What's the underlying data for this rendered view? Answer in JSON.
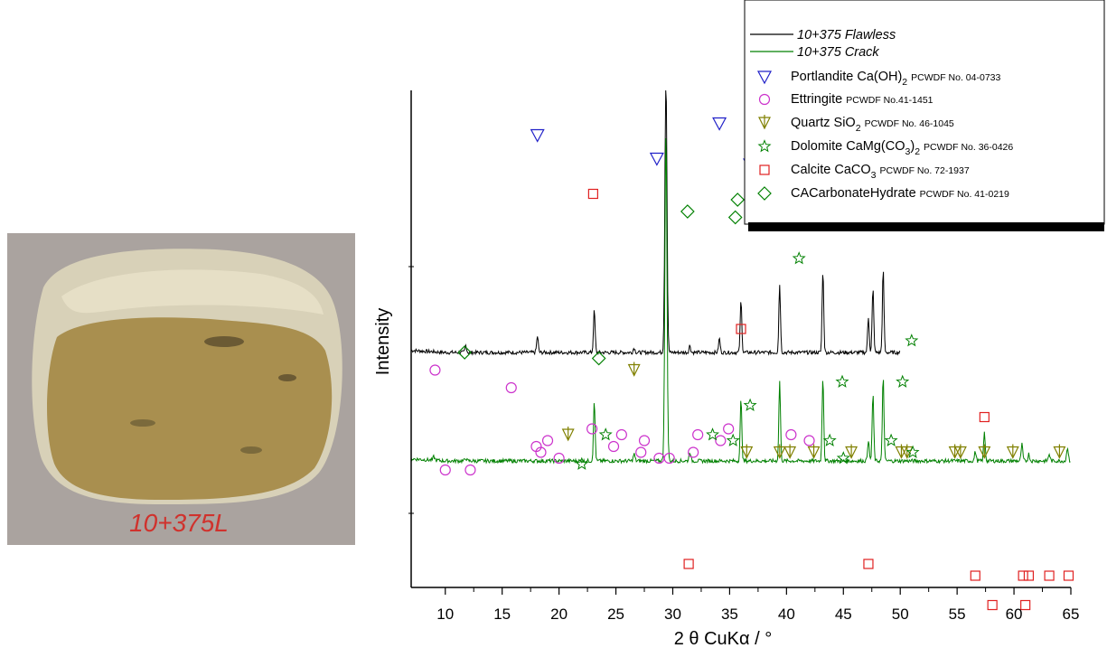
{
  "photo": {
    "label": "10+375L",
    "colors": {
      "background": "#aaa39f",
      "crust": "#d8d1b8",
      "core": "#a98f4f",
      "label": "#d0322d"
    }
  },
  "chart_data": {
    "type": "line",
    "xlabel": "2 θ CuKα / °",
    "ylabel": "Intensity",
    "xlim": [
      7,
      65
    ],
    "xticks": [
      10,
      15,
      20,
      25,
      30,
      35,
      40,
      45,
      50,
      55,
      60,
      65
    ],
    "series": [
      {
        "name": "10+375 Flawless",
        "color": "#000000",
        "x_range": [
          7,
          50
        ],
        "baseline": 0.0,
        "peaks": [
          [
            11.8,
            3
          ],
          [
            18.1,
            7
          ],
          [
            23.1,
            18
          ],
          [
            26.6,
            2
          ],
          [
            29.4,
            118
          ],
          [
            31.5,
            3
          ],
          [
            34.1,
            6
          ],
          [
            36.0,
            22
          ],
          [
            39.4,
            29
          ],
          [
            43.2,
            35
          ],
          [
            47.2,
            15
          ],
          [
            47.6,
            27
          ],
          [
            48.5,
            35
          ]
        ]
      },
      {
        "name": "10+375 Crack",
        "color": "#008000",
        "x_range": [
          7,
          65
        ],
        "baseline": 0.0,
        "peaks": [
          [
            9.0,
            1.5
          ],
          [
            11.8,
            1.2
          ],
          [
            23.1,
            25
          ],
          [
            26.6,
            3
          ],
          [
            29.4,
            140
          ],
          [
            31.5,
            4
          ],
          [
            36.0,
            26
          ],
          [
            39.4,
            34
          ],
          [
            43.2,
            36
          ],
          [
            47.2,
            9
          ],
          [
            47.6,
            28
          ],
          [
            48.5,
            36
          ],
          [
            56.6,
            4
          ],
          [
            57.4,
            12
          ],
          [
            60.7,
            7
          ],
          [
            61.3,
            3
          ],
          [
            63.1,
            3
          ],
          [
            64.7,
            6
          ]
        ]
      }
    ],
    "markers": [
      {
        "name": "Portlandite Ca(OH)2",
        "symbol": "tri-down",
        "color": "#2020c8",
        "points": [
          [
            18.1,
            37
          ],
          [
            28.6,
            33
          ],
          [
            34.1,
            39
          ],
          [
            36.8,
            32
          ],
          [
            47.1,
            35
          ],
          [
            50.8,
            34
          ],
          [
            54.3,
            33
          ],
          [
            56.4,
            32
          ],
          [
            59.3,
            32
          ],
          [
            62.6,
            32
          ]
        ]
      },
      {
        "name": "Ettringite",
        "symbol": "circle",
        "color": "#cc33cc",
        "points": [
          [
            9.1,
            -3
          ],
          [
            15.8,
            -6
          ],
          [
            10.0,
            -20
          ],
          [
            12.2,
            -20
          ],
          [
            18.0,
            -16
          ],
          [
            18.4,
            -17
          ],
          [
            19.0,
            -15
          ],
          [
            20.0,
            -18
          ],
          [
            22.9,
            -13
          ],
          [
            24.8,
            -16
          ],
          [
            25.5,
            -14
          ],
          [
            27.2,
            -17
          ],
          [
            27.5,
            -15
          ],
          [
            28.8,
            -18
          ],
          [
            29.7,
            -18
          ],
          [
            31.8,
            -17
          ],
          [
            32.2,
            -14
          ],
          [
            34.2,
            -15
          ],
          [
            34.9,
            -13
          ],
          [
            40.4,
            -14
          ],
          [
            42.0,
            -15
          ]
        ]
      },
      {
        "name": "Quartz SiO2",
        "symbol": "tri-down-stem",
        "color": "#808000",
        "points": [
          [
            20.8,
            -14
          ],
          [
            26.6,
            -3
          ],
          [
            36.5,
            -17
          ],
          [
            39.4,
            -17
          ],
          [
            40.3,
            -17
          ],
          [
            42.4,
            -17
          ],
          [
            45.7,
            -17
          ],
          [
            50.1,
            -17
          ],
          [
            50.6,
            -17
          ],
          [
            54.8,
            -17
          ],
          [
            55.3,
            -17
          ],
          [
            57.4,
            -17
          ],
          [
            59.9,
            -17
          ],
          [
            64.0,
            -17
          ]
        ]
      },
      {
        "name": "Dolomite CaMg(CO3)2",
        "symbol": "star",
        "color": "#008000",
        "points": [
          [
            30.9,
            89
          ],
          [
            41.1,
            16
          ],
          [
            36.8,
            -9
          ],
          [
            24.1,
            -14
          ],
          [
            22.0,
            -19
          ],
          [
            33.5,
            -14
          ],
          [
            35.3,
            -15
          ],
          [
            43.8,
            -15
          ],
          [
            45.0,
            -18
          ],
          [
            49.2,
            -15
          ],
          [
            51.1,
            -17
          ],
          [
            51.0,
            2
          ],
          [
            44.9,
            -5
          ],
          [
            50.2,
            -5
          ]
        ]
      },
      {
        "name": "Calcite CaCO3",
        "symbol": "square",
        "color": "#e02020",
        "points": [
          [
            29.4,
            89
          ],
          [
            39.4,
            37
          ],
          [
            43.2,
            37
          ],
          [
            47.6,
            32
          ],
          [
            48.5,
            32
          ],
          [
            36.0,
            4
          ],
          [
            23.0,
            27
          ],
          [
            57.4,
            -11
          ],
          [
            31.4,
            -36
          ],
          [
            47.2,
            -36
          ],
          [
            56.6,
            -38
          ],
          [
            60.8,
            -38
          ],
          [
            61.3,
            -38
          ],
          [
            63.1,
            -38
          ],
          [
            64.8,
            -38
          ],
          [
            58.1,
            -43
          ],
          [
            61.0,
            -43
          ]
        ]
      },
      {
        "name": "CACarbonateHydrate",
        "symbol": "diamond",
        "color": "#008000",
        "points": [
          [
            11.7,
            0
          ],
          [
            23.5,
            -1
          ],
          [
            31.3,
            24
          ],
          [
            35.7,
            26
          ],
          [
            35.5,
            23
          ],
          [
            37.6,
            25
          ],
          [
            38.3,
            25
          ],
          [
            42.7,
            23
          ],
          [
            43.1,
            23
          ]
        ]
      }
    ],
    "legend": {
      "placement": "top-right",
      "entries": [
        {
          "kind": "line",
          "color": "#000000",
          "label": "10+375 Flawless",
          "italic": true
        },
        {
          "kind": "line",
          "color": "#008000",
          "label": "10+375 Crack",
          "italic": true
        },
        {
          "kind": "marker",
          "symbol": "tri-down",
          "color": "#2020c8",
          "label": "Portlandite Ca(OH)",
          "sub": "2",
          "ref": "PCWDF No. 04-0733"
        },
        {
          "kind": "marker",
          "symbol": "circle",
          "color": "#cc33cc",
          "label": "Ettringite",
          "sub": "",
          "ref": "PCWDF No.41-1451"
        },
        {
          "kind": "marker",
          "symbol": "tri-down-stem",
          "color": "#808000",
          "label": "Quartz SiO",
          "sub": "2",
          "ref": "PCWDF No. 46-1045"
        },
        {
          "kind": "marker",
          "symbol": "star",
          "color": "#008000",
          "label": "Dolomite CaMg(CO",
          "sub": "3",
          "after": ")",
          "sub2": "2",
          "ref": "PCWDF No. 36-0426"
        },
        {
          "kind": "marker",
          "symbol": "square",
          "color": "#e02020",
          "label": "Calcite CaCO",
          "sub": "3",
          "ref": "PCWDF No. 72-1937"
        },
        {
          "kind": "marker",
          "symbol": "diamond",
          "color": "#008000",
          "label": "CACarbonateHydrate",
          "sub": "",
          "ref": "PCWDF No. 41-0219"
        }
      ]
    }
  }
}
